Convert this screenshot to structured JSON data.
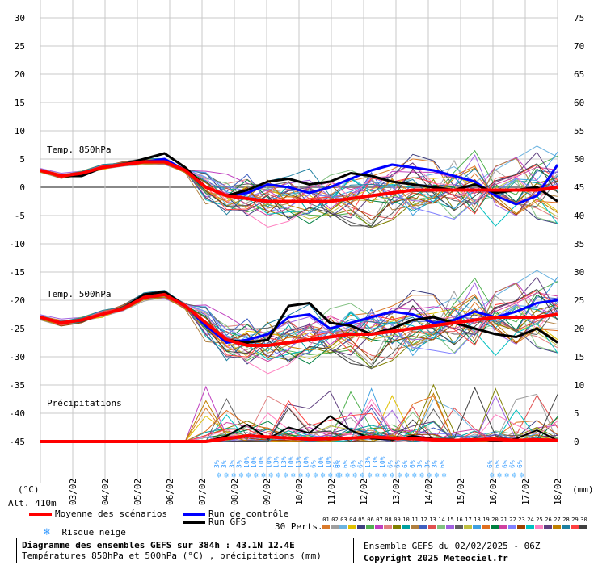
{
  "chart_data": {
    "type": "line",
    "title": "Diagramme des ensembles GEFS sur 384h : 43.1N 12.4E",
    "subtitle": "Températures 850hPa et 500hPa (°C) , précipitations (mm)",
    "left_axis": {
      "label": "(°C)",
      "ticks": [
        30,
        25,
        20,
        15,
        10,
        5,
        0,
        -5,
        -10,
        -15,
        -20,
        -25,
        -30,
        -35,
        -40,
        -45
      ],
      "range": [
        -45,
        30
      ]
    },
    "right_axis": {
      "label": "(mm)",
      "ticks": [
        75,
        70,
        65,
        60,
        55,
        50,
        45,
        40,
        35,
        30,
        25,
        20,
        15,
        10,
        5,
        0
      ]
    },
    "x_dates": [
      "03/02",
      "04/02",
      "05/02",
      "06/02",
      "07/02",
      "08/02",
      "09/02",
      "10/02",
      "11/02",
      "12/02",
      "13/02",
      "14/02",
      "15/02",
      "16/02",
      "17/02",
      "18/02"
    ],
    "altitude": "Alt. 410m",
    "section_labels": {
      "t850": "Temp. 850hPa",
      "t500": "Temp. 500hPa",
      "precip": "Précipitations"
    },
    "t850": {
      "mean_name": "Moyenne des scénarios",
      "mean": [
        3.0,
        2.0,
        2.5,
        3.5,
        4.0,
        4.5,
        4.5,
        3.0,
        0.0,
        -1.5,
        -2.0,
        -2.5,
        -2.5,
        -2.5,
        -2.5,
        -2.0,
        -1.5,
        -1.0,
        -0.5,
        -0.5,
        -0.5,
        -0.5,
        -0.5,
        -0.5,
        -0.5,
        0.0
      ],
      "control": [
        3.0,
        2.0,
        2.5,
        3.5,
        4.0,
        4.5,
        5.0,
        3.0,
        0.0,
        -1.5,
        -1.0,
        0.5,
        0.0,
        -1.0,
        0.0,
        1.5,
        3.0,
        4.0,
        3.5,
        3.0,
        2.0,
        1.0,
        -1.5,
        -3.0,
        -1.5,
        4.0
      ],
      "gfs": [
        3.0,
        2.0,
        2.0,
        3.5,
        4.0,
        5.0,
        6.0,
        3.5,
        0.0,
        -1.5,
        -0.5,
        1.0,
        1.5,
        0.5,
        1.0,
        2.5,
        2.0,
        1.0,
        0.5,
        0.0,
        -0.5,
        0.5,
        -1.0,
        -0.5,
        0.0,
        -2.5
      ]
    },
    "t500": {
      "mean": [
        -23.0,
        -24.0,
        -23.5,
        -22.5,
        -21.5,
        -19.5,
        -19.0,
        -21.0,
        -24.0,
        -27.0,
        -28.0,
        -28.0,
        -27.5,
        -27.0,
        -26.5,
        -26.0,
        -26.0,
        -25.5,
        -25.0,
        -24.5,
        -24.0,
        -23.5,
        -23.0,
        -23.0,
        -23.0,
        -22.5
      ],
      "control": [
        -23.0,
        -24.0,
        -23.5,
        -22.5,
        -21.5,
        -19.5,
        -19.0,
        -21.0,
        -24.5,
        -27.5,
        -27.0,
        -26.0,
        -23.0,
        -22.5,
        -25.0,
        -24.0,
        -23.0,
        -22.0,
        -22.5,
        -24.0,
        -23.5,
        -22.0,
        -23.0,
        -22.0,
        -20.5,
        -20.0
      ],
      "gfs": [
        -23.0,
        -24.0,
        -23.5,
        -22.5,
        -21.5,
        -19.0,
        -18.5,
        -21.0,
        -24.0,
        -27.0,
        -27.5,
        -27.0,
        -21.0,
        -20.5,
        -24.0,
        -24.5,
        -26.0,
        -25.0,
        -23.5,
        -23.0,
        -24.0,
        -25.0,
        -26.0,
        -26.5,
        -25.0,
        -27.5
      ]
    },
    "precip_offset": -45,
    "precip_mean": [
      0,
      0,
      0,
      0,
      0,
      0,
      0,
      0,
      0,
      0.5,
      1.0,
      0.8,
      0.6,
      0.4,
      0.5,
      0.6,
      0.8,
      0.6,
      0.5,
      0.3,
      0.2,
      0.3,
      0.4,
      0.2,
      0.3,
      0.2
    ],
    "precip_gfs": [
      0,
      0,
      0,
      0,
      0,
      0,
      0,
      0,
      0,
      1.0,
      3.0,
      0.5,
      2.5,
      1.5,
      4.5,
      2.0,
      0.5,
      0.3,
      1.0,
      0.5,
      0.0,
      0.5,
      0.0,
      0.5,
      2.0,
      0.2
    ],
    "snow_risk": {
      "group1": [
        "3%",
        "3%",
        "3%",
        "3%",
        "10%",
        "10%",
        "10%",
        "10%",
        "13%",
        "13%",
        "10%",
        "13%",
        "10%",
        "6%",
        "10%",
        "10%",
        "6%"
      ],
      "group2": [
        "6%",
        "6%",
        "6%",
        "6%",
        "13%",
        "13%",
        "10%",
        "6%",
        "6%",
        "6%",
        "6%",
        "3%",
        "3%",
        "3%",
        "6%"
      ],
      "group3": [
        "6%",
        "6%",
        "6%",
        "6%",
        "6%"
      ]
    }
  },
  "legend": {
    "mean": "Moyenne des scénarios",
    "control": "Run de contrôle",
    "gfs": "Run GFS",
    "snow": "Risque neige",
    "perts": "30 Perts.",
    "mean_color": "#ff0000",
    "control_color": "#0000ff",
    "gfs_color": "#000000"
  },
  "perturbations": {
    "labels": [
      "01",
      "02",
      "03",
      "04",
      "05",
      "06",
      "07",
      "08",
      "09",
      "10",
      "11",
      "12",
      "13",
      "14",
      "15",
      "16",
      "17",
      "18",
      "19",
      "20",
      "21",
      "22",
      "23",
      "24",
      "25",
      "26",
      "27",
      "28",
      "29",
      "30"
    ],
    "colors": [
      "#d97a2b",
      "#a0a0a0",
      "#6bb3e0",
      "#e0c000",
      "#404080",
      "#50b050",
      "#c040c0",
      "#e08080",
      "#808000",
      "#00a0a0",
      "#b08040",
      "#4060c0",
      "#e05050",
      "#80c080",
      "#a060e0",
      "#606060",
      "#c0c040",
      "#40a0e0",
      "#e07020",
      "#008040",
      "#d040a0",
      "#8080ff",
      "#a04000",
      "#00c0c0",
      "#ff80c0",
      "#604080",
      "#c08000",
      "#2080a0",
      "#ff4040",
      "#404040"
    ]
  },
  "footer": {
    "title": "Diagramme des ensembles GEFS sur 384h : 43.1N 12.4E",
    "subtitle": "Températures 850hPa et 500hPa (°C) , précipitations (mm)",
    "run": "Ensemble GEFS du 02/02/2025 - 06Z",
    "copyright": "Copyright 2025 Meteociel.fr"
  }
}
